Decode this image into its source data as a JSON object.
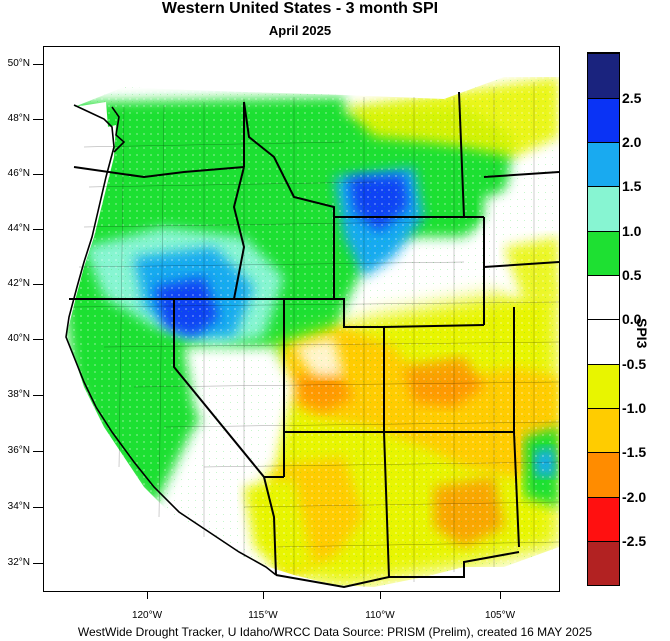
{
  "title": "Western United States - 3 month SPI",
  "subtitle": "April 2025",
  "footer": "WestWide Drought Tracker, U Idaho/WRCC Data Source: PRISM (Prelim), created 16 MAY 2025",
  "colorbar": {
    "title": "SPI3",
    "labels": [
      "2.5",
      "2.0",
      "1.5",
      "1.0",
      "0.5",
      "0.0",
      "-0.5",
      "-1.0",
      "-1.5",
      "-2.0",
      "-2.5"
    ],
    "colors": [
      "#1a237e",
      "#0a33f5",
      "#19aaf0",
      "#87f5d2",
      "#1ee032",
      "#ffffff",
      "#ffffff",
      "#e8f500",
      "#ffcc00",
      "#ff8c00",
      "#ff1010",
      "#b22222"
    ]
  },
  "axes": {
    "lat_labels": [
      "50°N",
      "48°N",
      "46°N",
      "44°N",
      "42°N",
      "40°N",
      "38°N",
      "36°N",
      "34°N",
      "32°N"
    ],
    "lon_labels": [
      "120°W",
      "115°W",
      "110°W",
      "105°W"
    ]
  }
}
